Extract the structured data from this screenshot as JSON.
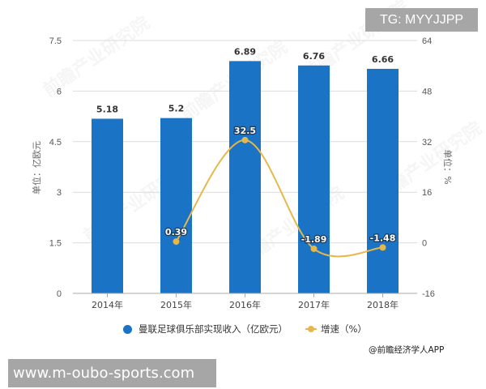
{
  "overlay": {
    "tg_label": "TG: MYYJJPP",
    "url_label": "www.m-oubo-sports.com"
  },
  "credit": "@前瞻经济学人APP",
  "watermark_text": "前瞻产业研究院",
  "legend": {
    "bar_label": "曼联足球俱乐部实现收入（亿欧元）",
    "line_label": "增速（%）"
  },
  "colors": {
    "bar": "#1a73c4",
    "line": "#e6b84c",
    "grid": "#dcdcdc",
    "axis": "#aaaaaa"
  },
  "chart_data": {
    "type": "bar+line",
    "title": "",
    "categories": [
      "2014年",
      "2015年",
      "2016年",
      "2017年",
      "2018年"
    ],
    "series": [
      {
        "name": "曼联足球俱乐部实现收入（亿欧元）",
        "type": "bar",
        "axis": "left",
        "values": [
          5.18,
          5.2,
          6.89,
          6.76,
          6.66
        ],
        "labels": [
          "5.18",
          "5.2",
          "6.89",
          "6.76",
          "6.66"
        ]
      },
      {
        "name": "增速（%）",
        "type": "line",
        "axis": "right",
        "values": [
          null,
          0.39,
          32.5,
          -1.89,
          -1.48
        ],
        "labels": [
          "",
          "0.39",
          "32.5",
          "-1.89",
          "-1.48"
        ]
      }
    ],
    "ylabel": "单位：亿欧元",
    "ylabel_right": "单位：%",
    "ylim": [
      0,
      7.5
    ],
    "yticks": [
      "0",
      "1.5",
      "3",
      "4.5",
      "6",
      "7.5"
    ],
    "ylim_right": [
      -16,
      64
    ],
    "yticks_right": [
      "-16",
      "0",
      "16",
      "32",
      "48",
      "64"
    ],
    "grid": true,
    "legend_position": "bottom"
  }
}
